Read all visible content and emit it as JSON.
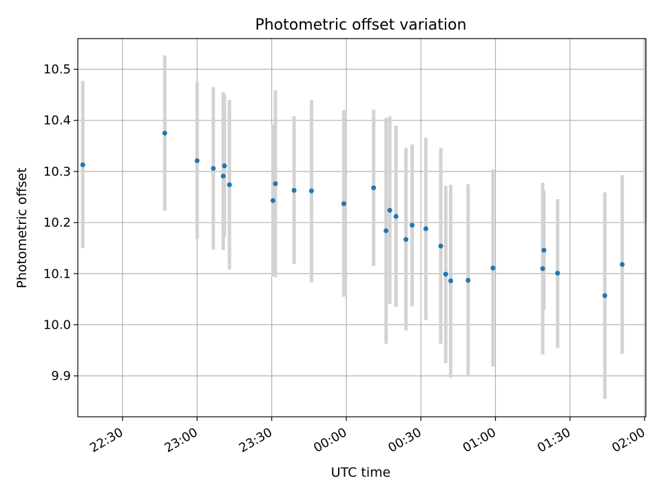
{
  "chart_data": {
    "type": "scatter",
    "title": "Photometric offset variation",
    "xlabel": "UTC time",
    "ylabel": "Photometric offset",
    "grid": true,
    "x_ticks": [
      "22:30",
      "23:00",
      "23:30",
      "00:00",
      "00:30",
      "01:00",
      "01:30",
      "02:00"
    ],
    "y_ticks": [
      "9.9",
      "10.0",
      "10.1",
      "10.2",
      "10.3",
      "10.4",
      "10.5"
    ],
    "xlim": [
      "22:12",
      "02:00:30"
    ],
    "ylim": [
      9.82,
      10.56
    ],
    "points": [
      {
        "t": "22:14",
        "y": 10.313,
        "lo": 10.15,
        "hi": 10.477
      },
      {
        "t": "22:47",
        "y": 10.375,
        "lo": 10.223,
        "hi": 10.527
      },
      {
        "t": "23:00",
        "y": 10.321,
        "lo": 10.168,
        "hi": 10.474
      },
      {
        "t": "23:06:30",
        "y": 10.306,
        "lo": 10.147,
        "hi": 10.465
      },
      {
        "t": "23:10:30",
        "y": 10.291,
        "lo": 10.146,
        "hi": 10.455
      },
      {
        "t": "23:11",
        "y": 10.311,
        "lo": 10.172,
        "hi": 10.45
      },
      {
        "t": "23:13",
        "y": 10.274,
        "lo": 10.108,
        "hi": 10.44
      },
      {
        "t": "23:30:30",
        "y": 10.243,
        "lo": 10.095,
        "hi": 10.392
      },
      {
        "t": "23:31:30",
        "y": 10.276,
        "lo": 10.093,
        "hi": 10.459
      },
      {
        "t": "23:39",
        "y": 10.263,
        "lo": 10.119,
        "hi": 10.408
      },
      {
        "t": "23:46",
        "y": 10.262,
        "lo": 10.083,
        "hi": 10.44
      },
      {
        "t": "23:59",
        "y": 10.237,
        "lo": 10.055,
        "hi": 10.42
      },
      {
        "t": "00:11",
        "y": 10.268,
        "lo": 10.115,
        "hi": 10.421
      },
      {
        "t": "00:16",
        "y": 10.184,
        "lo": 9.963,
        "hi": 10.405
      },
      {
        "t": "00:17:30",
        "y": 10.224,
        "lo": 10.041,
        "hi": 10.408
      },
      {
        "t": "00:20",
        "y": 10.212,
        "lo": 10.035,
        "hi": 10.39
      },
      {
        "t": "00:24",
        "y": 10.167,
        "lo": 9.989,
        "hi": 10.346
      },
      {
        "t": "00:26:30",
        "y": 10.195,
        "lo": 10.036,
        "hi": 10.353
      },
      {
        "t": "00:32",
        "y": 10.188,
        "lo": 10.009,
        "hi": 10.366
      },
      {
        "t": "00:38",
        "y": 10.154,
        "lo": 9.963,
        "hi": 10.346
      },
      {
        "t": "00:40",
        "y": 10.099,
        "lo": 9.925,
        "hi": 10.272
      },
      {
        "t": "00:42",
        "y": 10.086,
        "lo": 9.897,
        "hi": 10.274
      },
      {
        "t": "00:49",
        "y": 10.087,
        "lo": 9.899,
        "hi": 10.275
      },
      {
        "t": "00:59",
        "y": 10.111,
        "lo": 9.918,
        "hi": 10.304
      },
      {
        "t": "01:19",
        "y": 10.11,
        "lo": 9.942,
        "hi": 10.278
      },
      {
        "t": "01:19:30",
        "y": 10.146,
        "lo": 10.029,
        "hi": 10.263
      },
      {
        "t": "01:25",
        "y": 10.101,
        "lo": 9.955,
        "hi": 10.246
      },
      {
        "t": "01:44",
        "y": 10.057,
        "lo": 9.855,
        "hi": 10.259
      },
      {
        "t": "01:51",
        "y": 10.118,
        "lo": 9.943,
        "hi": 10.293
      },
      {
        "t": "02:00:10",
        "y": null,
        "lo": 10.2,
        "hi": 10.56
      }
    ],
    "colors": {
      "marker": "#1f77b4",
      "errorbar": "#d3d3d3",
      "grid": "#b0b0b0",
      "axes": "#000000"
    }
  }
}
